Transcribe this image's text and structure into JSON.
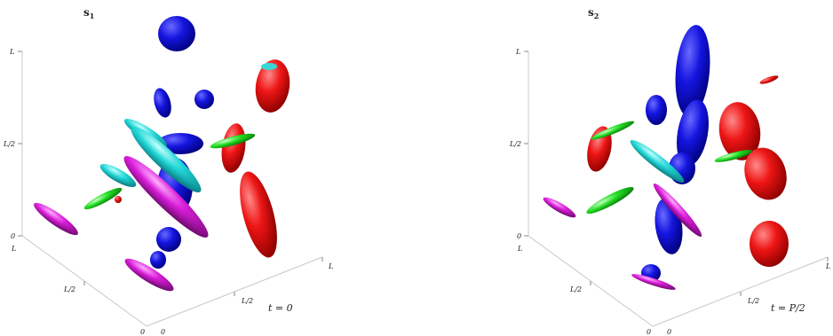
{
  "colors": {
    "blue": "#1010d8",
    "red": "#e41010",
    "cyan": "#22d8d8",
    "magenta": "#d81cd8",
    "green": "#22dd22"
  },
  "panels": [
    {
      "title_base": "s",
      "title_sub": "1",
      "time_label": "t = 0",
      "z_ticks": [
        "L",
        "L/2",
        "0"
      ],
      "y_ticks": [
        "L",
        "L/2",
        "0"
      ],
      "x_ticks": [
        "0",
        "L/2",
        "L"
      ]
    },
    {
      "title_base": "s",
      "title_sub": "2",
      "time_label": "t = P/2",
      "z_ticks": [
        "L",
        "L/2",
        "0"
      ],
      "y_ticks": [
        "L",
        "L/2",
        "0"
      ],
      "x_ticks": [
        "0",
        "L/2",
        "L"
      ]
    }
  ]
}
